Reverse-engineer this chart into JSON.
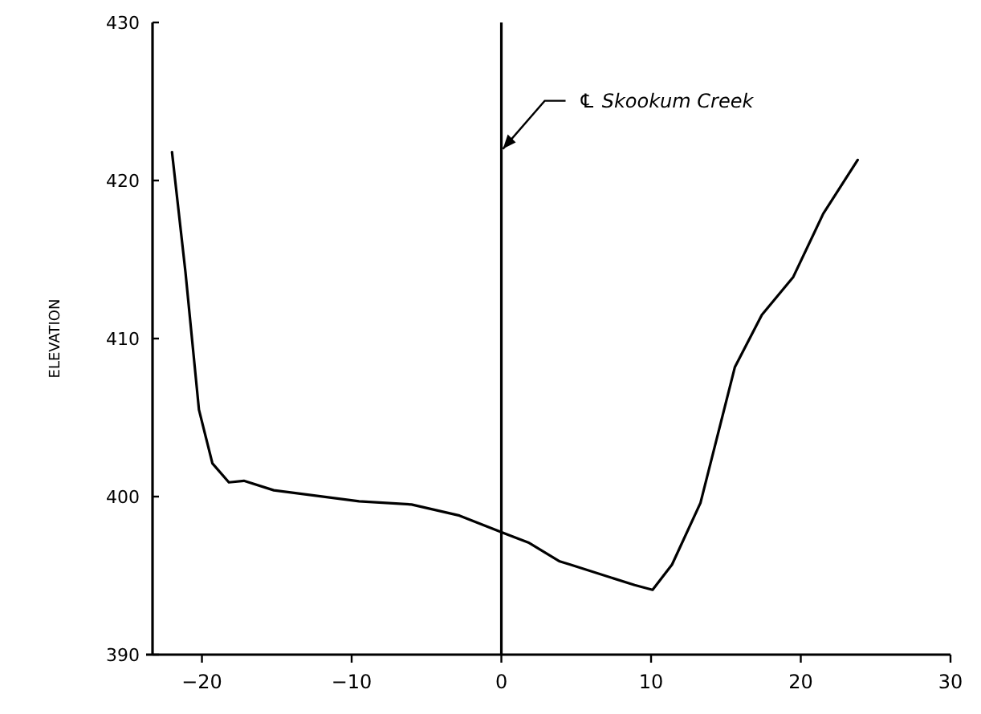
{
  "chart_data": {
    "type": "line",
    "ylabel": "ELEVATION",
    "x": [
      -22.0,
      -21.1,
      -20.2,
      -19.3,
      -18.2,
      -17.2,
      -15.2,
      -9.5,
      -6.0,
      -2.8,
      0.4,
      1.8,
      3.9,
      4.6,
      8.9,
      10.1,
      11.4,
      13.3,
      15.6,
      17.4,
      19.5,
      21.5,
      23.8
    ],
    "series": [
      {
        "color": "#000000",
        "values": [
          421.8,
          414.2,
          405.5,
          402.1,
          400.9,
          401.0,
          400.4,
          399.7,
          399.5,
          398.8,
          397.6,
          397.1,
          395.9,
          395.7,
          394.4,
          394.1,
          395.7,
          399.6,
          408.2,
          411.5,
          413.9,
          417.9,
          421.3
        ]
      }
    ],
    "xlim": [
      -23.3,
      30
    ],
    "xticks": [
      -20,
      -10,
      0,
      10,
      20,
      30
    ],
    "ylim": [
      390,
      430
    ],
    "yticks": [
      390,
      400,
      410,
      420,
      430
    ],
    "ref_lines": [
      {
        "axis": "x",
        "value": 0,
        "label": "℄ Skookum Creek",
        "color": "#000000"
      }
    ],
    "grid": false,
    "marker": "none",
    "line_style": "solid"
  }
}
